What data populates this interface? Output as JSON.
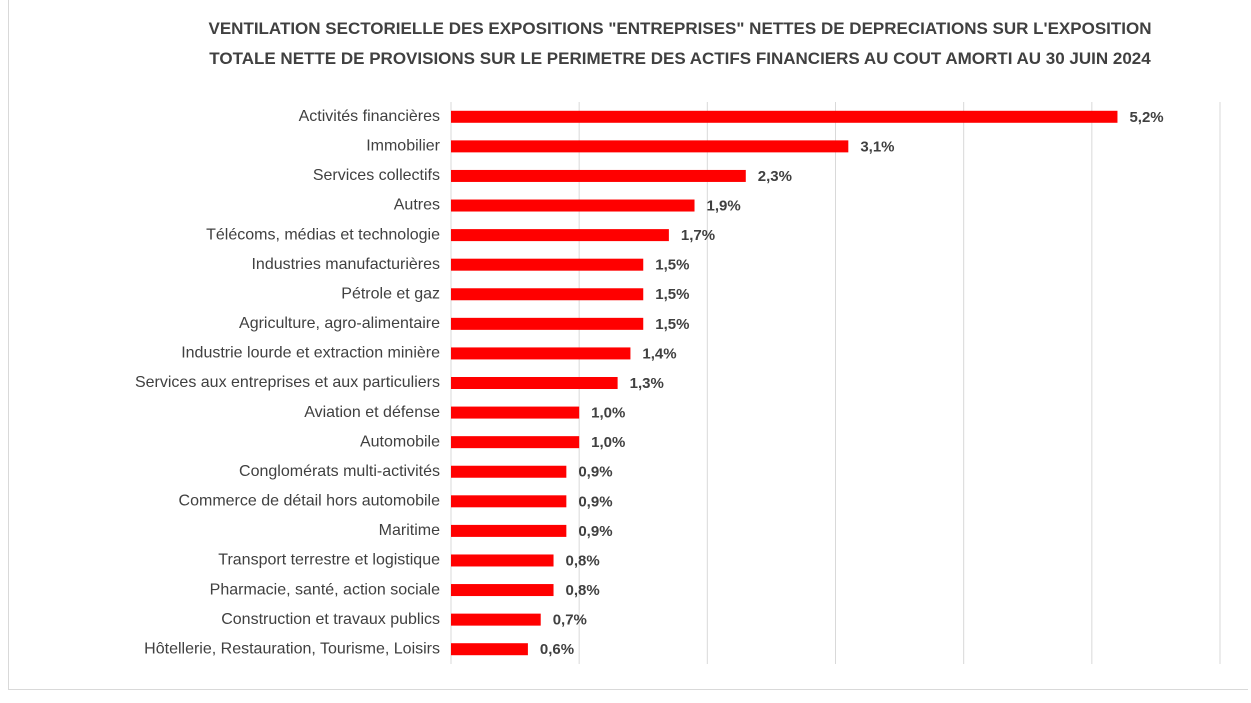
{
  "chart_data": {
    "type": "bar",
    "orientation": "horizontal",
    "title": "VENTILATION SECTORIELLE DES EXPOSITIONS \"ENTREPRISES\" NETTES DE DEPRECIATIONS SUR L'EXPOSITION TOTALE NETTE DE PROVISIONS SUR LE PERIMETRE DES ACTIFS FINANCIERS AU COUT AMORTI AU 30 JUIN 2024",
    "categories": [
      "Activités financières",
      "Immobilier",
      "Services collectifs",
      "Autres",
      "Télécoms, médias et technologie",
      "Industries manufacturières",
      "Pétrole et gaz",
      "Agriculture, agro-alimentaire",
      "Industrie lourde et extraction minière",
      "Services aux entreprises et aux particuliers",
      "Aviation et défense",
      "Automobile",
      "Conglomérats multi-activités",
      "Commerce de détail hors automobile",
      "Maritime",
      "Transport terrestre et logistique",
      "Pharmacie, santé, action sociale",
      "Construction et travaux publics",
      "Hôtellerie, Restauration, Tourisme, Loisirs"
    ],
    "values": [
      5.2,
      3.1,
      2.3,
      1.9,
      1.7,
      1.5,
      1.5,
      1.5,
      1.4,
      1.3,
      1.0,
      1.0,
      0.9,
      0.9,
      0.9,
      0.8,
      0.8,
      0.7,
      0.6
    ],
    "value_labels": [
      "5,2%",
      "3,1%",
      "2,3%",
      "1,9%",
      "1,7%",
      "1,5%",
      "1,5%",
      "1,5%",
      "1,4%",
      "1,3%",
      "1,0%",
      "1,0%",
      "0,9%",
      "0,9%",
      "0,9%",
      "0,8%",
      "0,8%",
      "0,7%",
      "0,6%"
    ],
    "color": "#ff0000",
    "xlim": [
      0,
      6
    ],
    "xticks": [
      0,
      1,
      2,
      3,
      4,
      5,
      6
    ],
    "grid": true
  }
}
